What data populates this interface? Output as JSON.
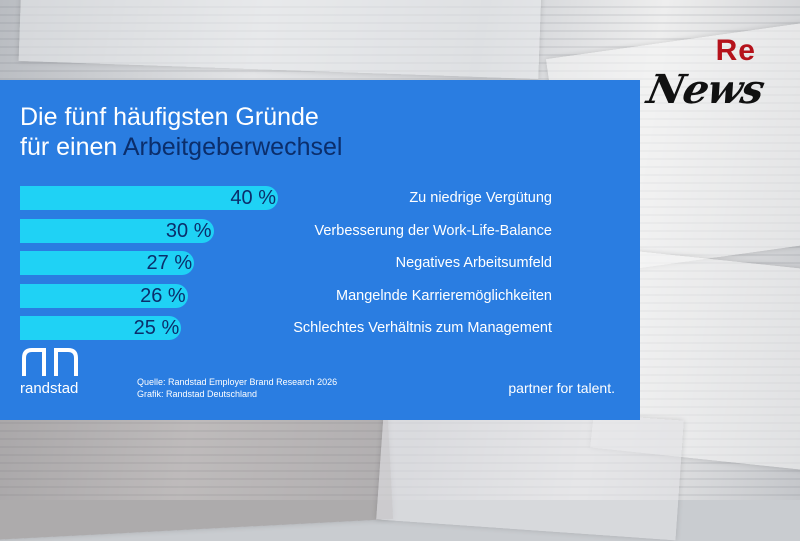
{
  "chart_data": {
    "type": "bar",
    "orientation": "horizontal",
    "title_line1": "Die fünf häufigsten Gründe",
    "title_line2_prefix": "für einen ",
    "title_line2_accent": "Arbeitgeberwechsel",
    "categories": [
      "Zu niedrige Vergütung",
      "Verbesserung der Work-Life-Balance",
      "Negatives Arbeitsumfeld",
      "Mangelnde Karrieremöglichkeiten",
      "Schlechtes Verhältnis zum Management"
    ],
    "values": [
      40,
      30,
      27,
      26,
      25
    ],
    "value_labels": [
      "40 %",
      "30 %",
      "27 %",
      "26 %",
      "25 %"
    ],
    "unit": "%",
    "xlim": [
      0,
      100
    ],
    "grid": false,
    "legend": "none"
  },
  "footer": {
    "brand": "randstad",
    "source_line1": "Quelle: Randstad Employer Brand Research 2026",
    "source_line2": "Grafik: Randstad Deutschland",
    "tagline": "partner for talent."
  },
  "watermark": {
    "re": "Re",
    "news": "News"
  },
  "colors": {
    "panel": "#2a7de1",
    "bar": "#1fd2f5",
    "accent_text": "#0b2e6b",
    "watermark_red": "#b5121b"
  }
}
